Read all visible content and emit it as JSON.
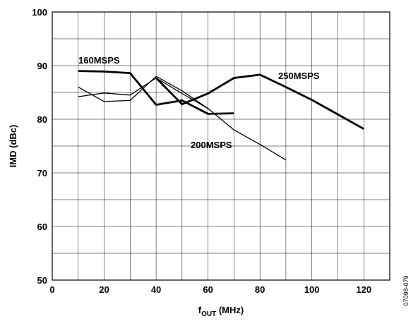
{
  "chart_data": {
    "type": "line",
    "xlabel_main": "f",
    "xlabel_sub": "OUT",
    "xlabel_unit": " (MHz)",
    "ylabel": "IMD (dBc)",
    "xlim": [
      0,
      130
    ],
    "ylim": [
      50,
      100
    ],
    "x_ticks": [
      "0",
      "20",
      "40",
      "60",
      "80",
      "100",
      "120"
    ],
    "y_ticks": [
      "50",
      "60",
      "70",
      "80",
      "90",
      "100"
    ],
    "grid": true,
    "series": [
      {
        "name": "160MSPS",
        "weight": "thick",
        "x": [
          10,
          20,
          30,
          40,
          50,
          60,
          70
        ],
        "y": [
          89.0,
          88.9,
          88.6,
          82.7,
          83.5,
          81.0,
          81.1
        ]
      },
      {
        "name": "250MSPS",
        "weight": "thick",
        "x": [
          40,
          50,
          60,
          70,
          80,
          90,
          100,
          120
        ],
        "y": [
          87.7,
          82.8,
          84.8,
          87.7,
          88.3,
          86.0,
          83.6,
          78.2
        ]
      },
      {
        "name": "",
        "weight": "thin",
        "x": [
          10,
          20,
          30,
          40,
          50,
          60,
          70,
          80,
          90
        ],
        "y": [
          86.0,
          83.3,
          83.5,
          88.0,
          85.3,
          82.0,
          78.0,
          75.3,
          72.4
        ]
      },
      {
        "name": "",
        "weight": "thin",
        "x": [
          10,
          20,
          30,
          40,
          50,
          60
        ],
        "y": [
          84.2,
          84.9,
          84.5,
          87.7,
          84.8,
          82.0
        ]
      }
    ],
    "labels": [
      {
        "text": "160MSPS",
        "series": 0
      },
      {
        "text": "250MSPS",
        "series": 1
      },
      {
        "text": "200MSPS",
        "series": 2
      }
    ]
  },
  "figure_id": "07098-079"
}
